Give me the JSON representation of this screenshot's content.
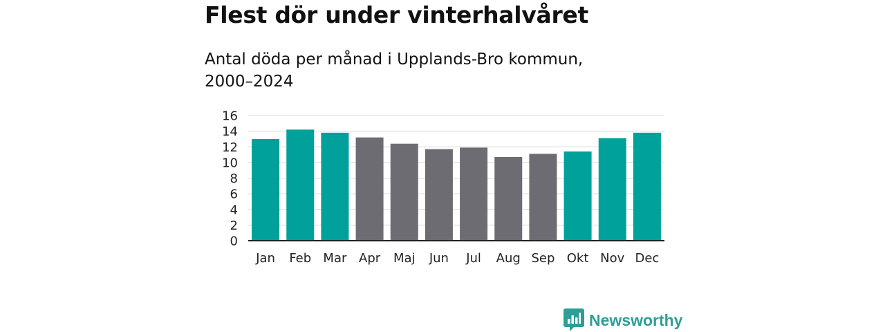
{
  "chart_data": {
    "type": "bar",
    "title": "Flest dör under vinterhalvåret",
    "subtitle": "Antal döda per månad i Upplands-Bro kommun, 2000–2024",
    "categories": [
      "Jan",
      "Feb",
      "Mar",
      "Apr",
      "Maj",
      "Jun",
      "Jul",
      "Aug",
      "Sep",
      "Okt",
      "Nov",
      "Dec"
    ],
    "values": [
      13.0,
      14.2,
      13.8,
      13.2,
      12.4,
      11.7,
      11.9,
      10.7,
      11.1,
      11.4,
      13.1,
      13.8
    ],
    "highlight": [
      true,
      true,
      true,
      false,
      false,
      false,
      false,
      false,
      false,
      true,
      true,
      true
    ],
    "colors": {
      "highlight": "#00a19a",
      "base": "#6d6c73",
      "grid": "#d9d9d9",
      "axis": "#222222"
    },
    "ylim": [
      0,
      16
    ],
    "yticks": [
      0,
      2,
      4,
      6,
      8,
      10,
      12,
      14,
      16
    ],
    "xlabel": "",
    "ylabel": "",
    "grid": true
  },
  "branding": {
    "logo_text": "Newsworthy",
    "logo_icon": "newsworthy-chart-icon",
    "color": "#2e9e96"
  }
}
